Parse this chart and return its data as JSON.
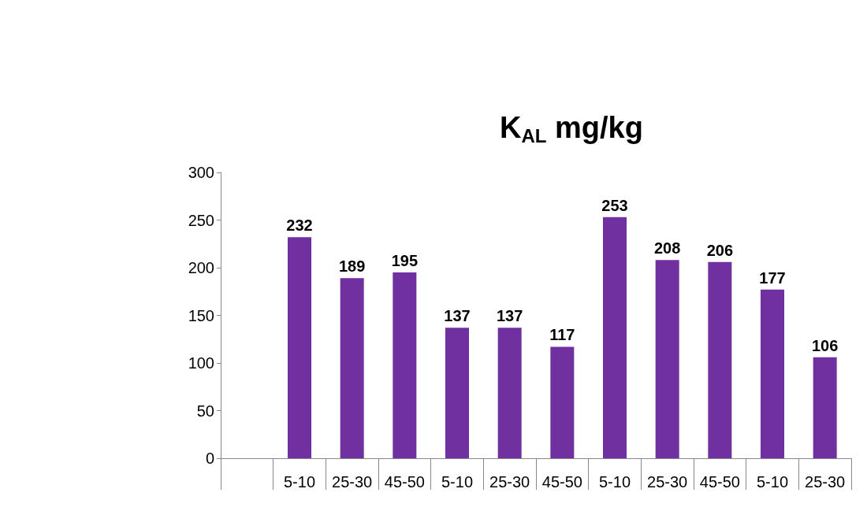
{
  "chart_data": {
    "type": "bar",
    "title": "K$_{AL}$ mg/kg",
    "categories": [
      null,
      "5-10",
      "25-30",
      "45-50",
      "5-10",
      "25-30",
      "45-50",
      "5-10",
      "25-30",
      "45-50",
      "5-10",
      "25-30"
    ],
    "values": [
      null,
      232,
      189,
      195,
      137,
      137,
      117,
      253,
      208,
      206,
      177,
      106
    ],
    "color": "#7030a0",
    "ylim": [
      0,
      300
    ],
    "yticks": [
      0,
      50,
      100,
      150,
      200,
      250,
      300
    ],
    "grid": false,
    "data_labels": true
  }
}
